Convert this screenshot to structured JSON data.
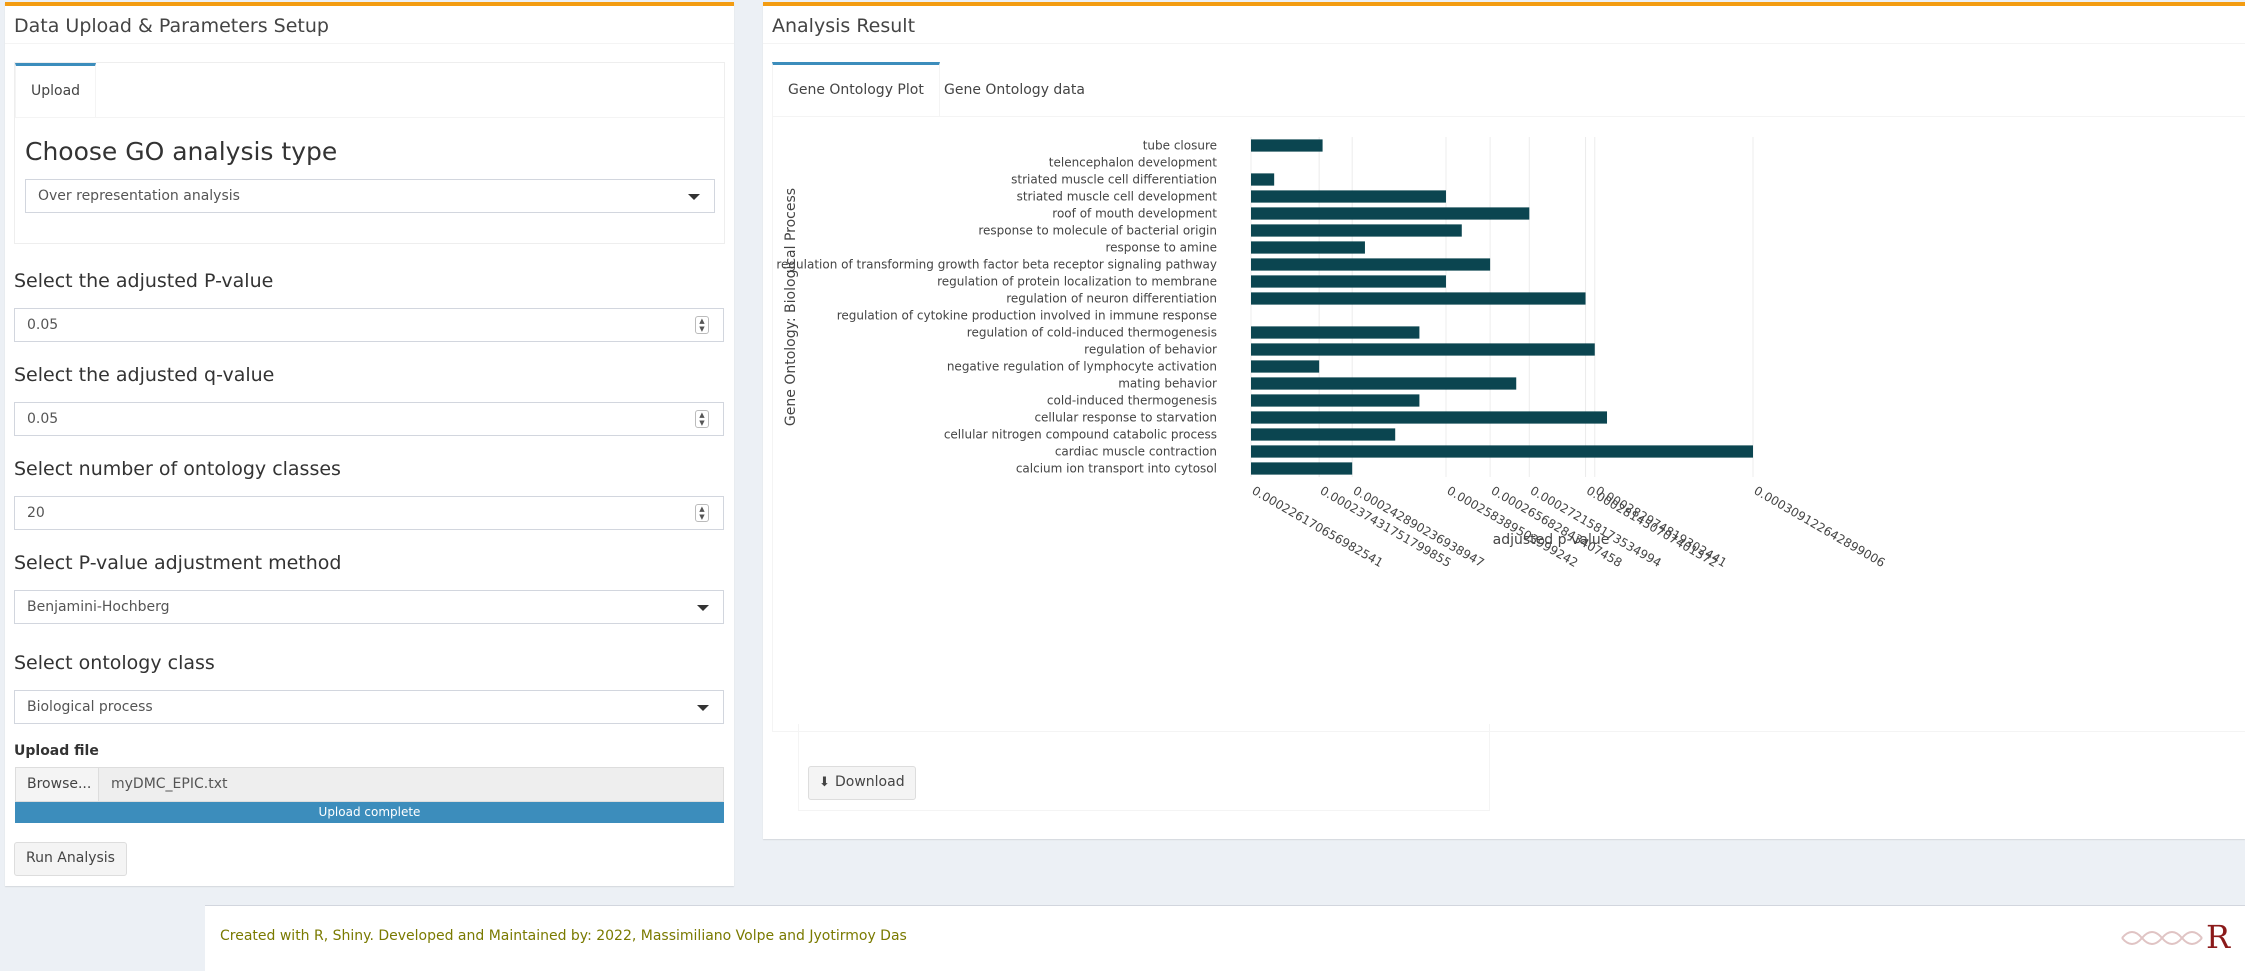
{
  "left_panel": {
    "title": "Data Upload & Parameters Setup",
    "tab_upload": "Upload",
    "go_type_heading": "Choose GO analysis type",
    "go_type_value": "Over representation analysis",
    "pvalue_label": "Select the adjusted P-value",
    "pvalue_value": "0.05",
    "qvalue_label": "Select the adjusted q-value",
    "qvalue_value": "0.05",
    "classes_label": "Select number of ontology classes",
    "classes_value": "20",
    "adjust_label": "Select P-value adjustment method",
    "adjust_value": "Benjamini-Hochberg",
    "ontology_label": "Select ontology class",
    "ontology_value": "Biological process",
    "upload_label": "Upload file",
    "browse_label": "Browse...",
    "file_name": "myDMC_EPIC.txt",
    "upload_status": "Upload complete",
    "upload_progress": 1.0,
    "run_label": "Run Analysis"
  },
  "right_panel": {
    "title": "Analysis Result",
    "tab_plot": "Gene Ontology Plot",
    "tab_data": "Gene Ontology data",
    "download_label": "Download",
    "download_icon": "download-icon"
  },
  "footer": {
    "text": "Created with R, Shiny. Developed and Maintained by: 2022, Massimiliano Volpe and Jyotirmoy Das",
    "logo_text": "R"
  },
  "colors": {
    "accent_top": "#f39c12",
    "tab_active": "#3c8dbc",
    "bar_fill": "#0b4550",
    "progress": "#3c8dbc",
    "footer_text": "#7a7a00"
  },
  "chart_data": {
    "type": "bar",
    "orientation": "horizontal",
    "ylabel": "Gene Ontology: Biological Process",
    "xlabel": "adjusted p-value",
    "xlim": [
      0.00022617065698254,
      0.000309122642899006
    ],
    "x_ticks": [
      "0.000226170656982541",
      "0.000237431751799855",
      "0.000242890236938947",
      "0.000258389503999242",
      "0.000265682843407458",
      "0.000272158173534994",
      "0.000281450707401372",
      "0.000282974819302441",
      "0.000309122642899006"
    ],
    "categories": [
      "tube closure",
      "telencephalon development",
      "striated muscle cell differentiation",
      "striated muscle cell development",
      "roof of mouth development",
      "response to molecule of bacterial origin",
      "response to amine",
      "regulation of transforming growth factor beta receptor signaling pathway",
      "regulation of protein localization to membrane",
      "regulation of neuron differentiation",
      "regulation of cytokine production involved in immune response",
      "regulation of cold-induced thermogenesis",
      "regulation of behavior",
      "negative regulation of lymphocyte activation",
      "mating behavior",
      "cold-induced thermogenesis",
      "cellular response to starvation",
      "cellular nitrogen compound catabolic process",
      "cardiac muscle contraction",
      "calcium ion transport into cytosol"
    ],
    "values": [
      0.000238,
      0.000226170656982541,
      0.00023,
      0.000258389503999242,
      0.000272158173534994,
      0.000261,
      0.000245,
      0.000265682843407458,
      0.000258389503999242,
      0.000281450707401372,
      0.000226170656982541,
      0.000254,
      0.000282974819302441,
      0.000237431751799855,
      0.00027,
      0.000254,
      0.000285,
      0.00025,
      0.000309122642899006,
      0.000242890236938947
    ],
    "grid": true,
    "legend": "none"
  }
}
